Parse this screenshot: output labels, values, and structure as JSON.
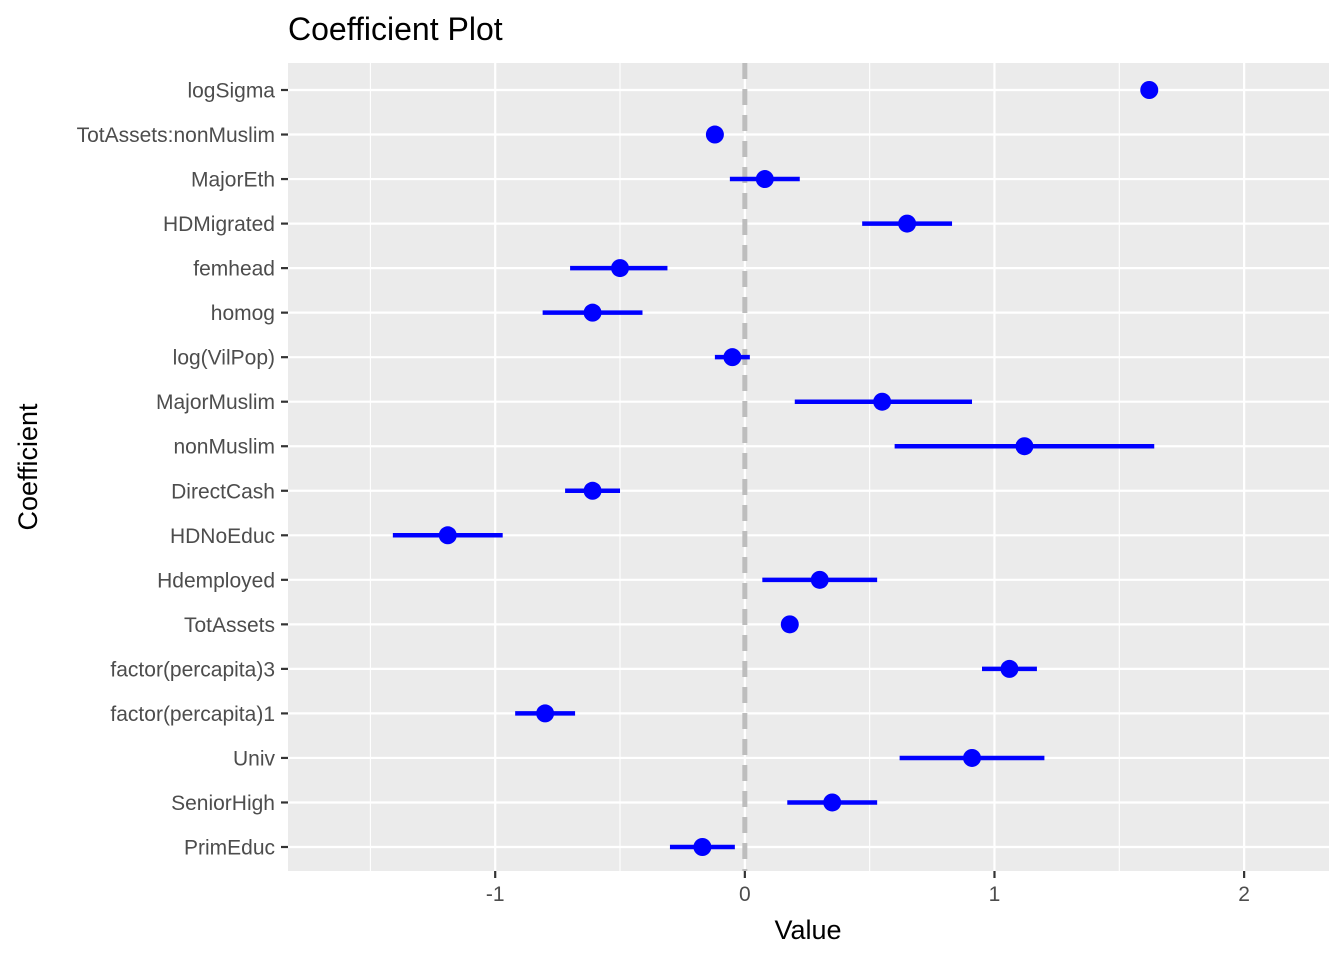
{
  "chart_data": {
    "type": "scatter",
    "subtype": "coefficient-plot",
    "title": "Coefficient Plot",
    "xlabel": "Value",
    "ylabel": "Coefficient",
    "xlim": [
      -1.83,
      2.34
    ],
    "x_ticks": [
      -1,
      0,
      1,
      2
    ],
    "x_tick_labels": [
      "-1",
      "0",
      "1",
      "2"
    ],
    "reference_line": 0,
    "grid": true,
    "colors": {
      "points": "#0000ff",
      "panel": "#ebebeb",
      "grid": "#ffffff",
      "reference": "#bdbdbd",
      "tick_text": "#4d4d4d"
    },
    "coefficients": [
      {
        "name": "logSigma",
        "value": 1.62,
        "low": 1.62,
        "high": 1.62
      },
      {
        "name": "TotAssets:nonMuslim",
        "value": -0.12,
        "low": -0.12,
        "high": -0.12
      },
      {
        "name": "MajorEth",
        "value": 0.08,
        "low": -0.06,
        "high": 0.22
      },
      {
        "name": "HDMigrated",
        "value": 0.65,
        "low": 0.47,
        "high": 0.83
      },
      {
        "name": "femhead",
        "value": -0.5,
        "low": -0.7,
        "high": -0.31
      },
      {
        "name": "homog",
        "value": -0.61,
        "low": -0.81,
        "high": -0.41
      },
      {
        "name": "log(VilPop)",
        "value": -0.05,
        "low": -0.12,
        "high": 0.02
      },
      {
        "name": "MajorMuslim",
        "value": 0.55,
        "low": 0.2,
        "high": 0.91
      },
      {
        "name": "nonMuslim",
        "value": 1.12,
        "low": 0.6,
        "high": 1.64
      },
      {
        "name": "DirectCash",
        "value": -0.61,
        "low": -0.72,
        "high": -0.5
      },
      {
        "name": "HDNoEduc",
        "value": -1.19,
        "low": -1.41,
        "high": -0.97
      },
      {
        "name": "Hdemployed",
        "value": 0.3,
        "low": 0.07,
        "high": 0.53
      },
      {
        "name": "TotAssets",
        "value": 0.18,
        "low": 0.18,
        "high": 0.18
      },
      {
        "name": "factor(percapita)3",
        "value": 1.06,
        "low": 0.95,
        "high": 1.17
      },
      {
        "name": "factor(percapita)1",
        "value": -0.8,
        "low": -0.92,
        "high": -0.68
      },
      {
        "name": "Univ",
        "value": 0.91,
        "low": 0.62,
        "high": 1.2
      },
      {
        "name": "SeniorHigh",
        "value": 0.35,
        "low": 0.17,
        "high": 0.53
      },
      {
        "name": "PrimEduc",
        "value": -0.17,
        "low": -0.3,
        "high": -0.04
      }
    ]
  }
}
